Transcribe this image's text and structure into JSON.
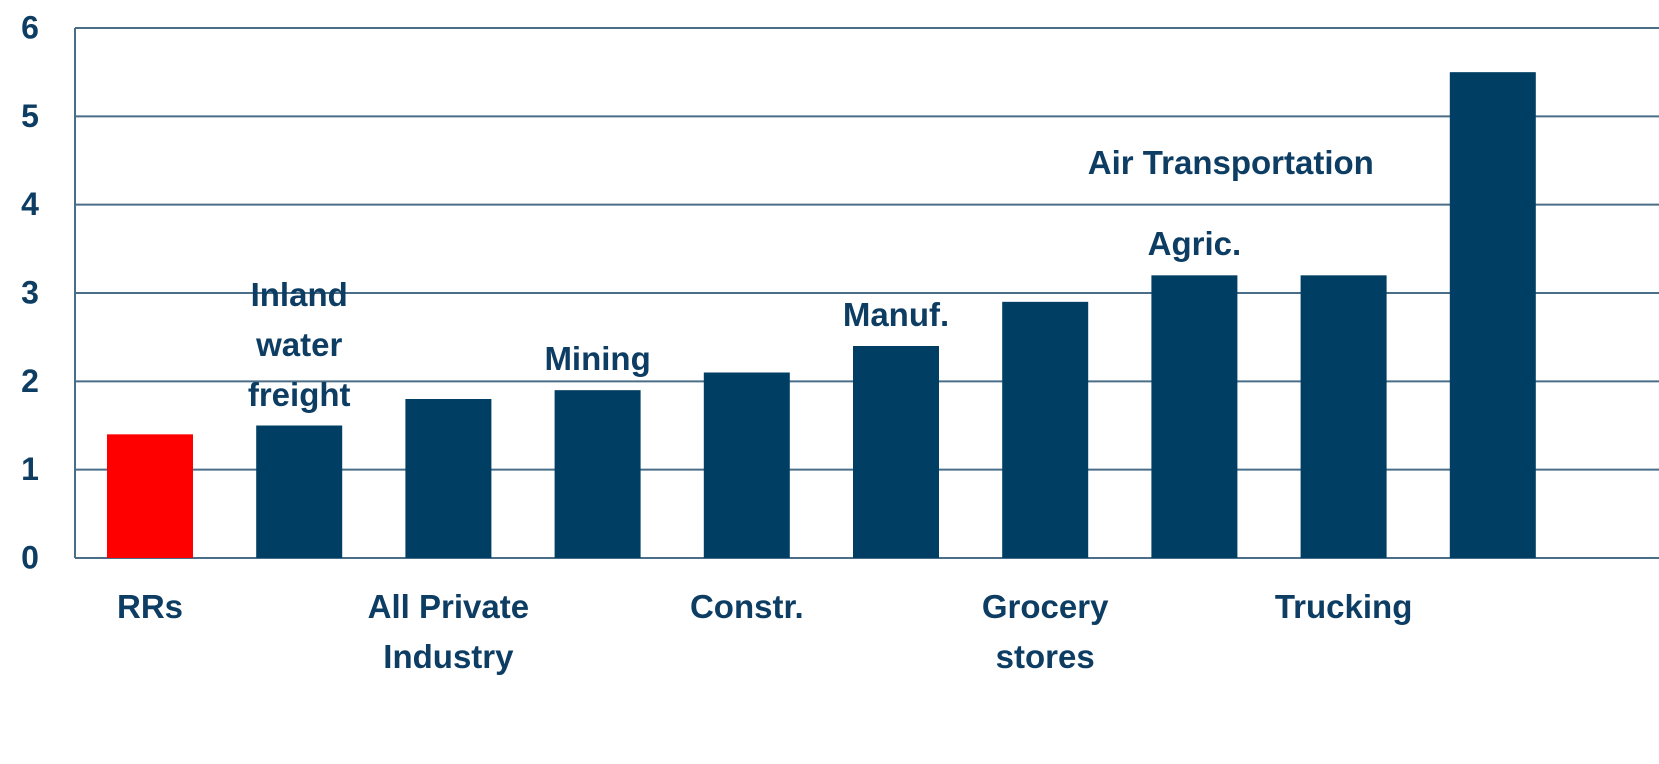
{
  "chart_data": {
    "type": "bar",
    "categories": [
      "RRs",
      "Inland water freight",
      "All Private Industry",
      "Mining",
      "Constr.",
      "Manuf.",
      "Grocery stores",
      "Agric.",
      "Trucking",
      "Air Transportation"
    ],
    "values": [
      1.4,
      1.5,
      1.8,
      1.9,
      2.1,
      2.4,
      2.9,
      3.2,
      3.2,
      5.5
    ],
    "colors": [
      "#ff0000",
      "#003f63",
      "#003f63",
      "#003f63",
      "#003f63",
      "#003f63",
      "#003f63",
      "#003f63",
      "#003f63",
      "#003f63"
    ],
    "ylim": [
      0,
      6
    ],
    "yticks": [
      0,
      1,
      2,
      3,
      4,
      5,
      6
    ],
    "grid": true
  }
}
